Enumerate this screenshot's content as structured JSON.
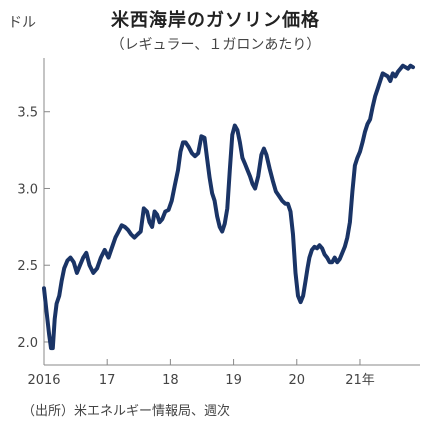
{
  "chart_data": {
    "type": "line",
    "title": "米西海岸のガソリン価格",
    "subtitle": "（レギュラー、１ガロンあたり）",
    "ylabel": "ドル",
    "xlabel": "",
    "ylim": [
      1.85,
      3.85
    ],
    "xlim": [
      2016.0,
      2021.95
    ],
    "yticks": [
      2.0,
      2.5,
      3.0,
      3.5
    ],
    "ytick_labels": [
      "2.0",
      "2.5",
      "3.0",
      "3.5"
    ],
    "xticks": [
      2016,
      2017,
      2018,
      2019,
      2020,
      2021
    ],
    "xtick_labels": [
      "2016",
      "17",
      "18",
      "19",
      "20",
      "21年"
    ],
    "grid": false,
    "line_color": "#1a3466",
    "source": "（出所）米エネルギー情報局、週次",
    "series": [
      {
        "x": [
          2016.0,
          2016.04,
          2016.08,
          2016.11,
          2016.14,
          2016.17,
          2016.2,
          2016.24,
          2016.28,
          2016.32,
          2016.37,
          2016.42,
          2016.47,
          2016.52,
          2016.57,
          2016.62,
          2016.67,
          2016.72,
          2016.78,
          2016.84,
          2016.9,
          2016.96,
          2017.02,
          2017.08,
          2017.13,
          2017.18,
          2017.23,
          2017.28,
          2017.33,
          2017.38,
          2017.43,
          2017.48,
          2017.53,
          2017.58,
          2017.63,
          2017.67,
          2017.71,
          2017.75,
          2017.79,
          2017.83,
          2017.87,
          2017.92,
          2017.97,
          2018.02,
          2018.07,
          2018.12,
          2018.16,
          2018.2,
          2018.24,
          2018.29,
          2018.34,
          2018.39,
          2018.44,
          2018.49,
          2018.54,
          2018.58,
          2018.62,
          2018.66,
          2018.7,
          2018.74,
          2018.78,
          2018.82,
          2018.86,
          2018.9,
          2018.94,
          2018.98,
          2019.02,
          2019.06,
          2019.1,
          2019.14,
          2019.18,
          2019.22,
          2019.26,
          2019.3,
          2019.34,
          2019.39,
          2019.44,
          2019.48,
          2019.52,
          2019.57,
          2019.62,
          2019.67,
          2019.72,
          2019.77,
          2019.82,
          2019.86,
          2019.9,
          2019.94,
          2019.98,
          2020.02,
          2020.06,
          2020.1,
          2020.14,
          2020.17,
          2020.2,
          2020.24,
          2020.28,
          2020.32,
          2020.36,
          2020.4,
          2020.44,
          2020.48,
          2020.52,
          2020.56,
          2020.6,
          2020.64,
          2020.68,
          2020.72,
          2020.76,
          2020.8,
          2020.84,
          2020.88,
          2020.92,
          2020.96,
          2021.0,
          2021.04,
          2021.08,
          2021.12,
          2021.16,
          2021.2,
          2021.24,
          2021.28,
          2021.32,
          2021.36,
          2021.4,
          2021.44,
          2021.48,
          2021.52,
          2021.56,
          2021.6,
          2021.64,
          2021.68,
          2021.72,
          2021.76,
          2021.8,
          2021.84
        ],
        "y": [
          2.35,
          2.2,
          2.05,
          1.96,
          1.96,
          2.15,
          2.25,
          2.3,
          2.4,
          2.48,
          2.53,
          2.55,
          2.52,
          2.45,
          2.5,
          2.55,
          2.58,
          2.5,
          2.45,
          2.48,
          2.55,
          2.6,
          2.55,
          2.62,
          2.68,
          2.72,
          2.76,
          2.75,
          2.73,
          2.7,
          2.68,
          2.7,
          2.72,
          2.87,
          2.85,
          2.78,
          2.75,
          2.85,
          2.83,
          2.78,
          2.8,
          2.85,
          2.86,
          2.92,
          3.02,
          3.12,
          3.24,
          3.3,
          3.3,
          3.27,
          3.23,
          3.21,
          3.23,
          3.34,
          3.33,
          3.2,
          3.07,
          2.97,
          2.92,
          2.82,
          2.75,
          2.72,
          2.77,
          2.87,
          3.12,
          3.35,
          3.41,
          3.38,
          3.3,
          3.2,
          3.16,
          3.12,
          3.08,
          3.03,
          3.0,
          3.08,
          3.22,
          3.26,
          3.22,
          3.13,
          3.05,
          2.98,
          2.95,
          2.92,
          2.9,
          2.9,
          2.85,
          2.7,
          2.45,
          2.3,
          2.26,
          2.3,
          2.4,
          2.48,
          2.55,
          2.6,
          2.62,
          2.61,
          2.63,
          2.61,
          2.57,
          2.55,
          2.52,
          2.52,
          2.55,
          2.52,
          2.54,
          2.58,
          2.62,
          2.68,
          2.78,
          2.98,
          3.15,
          3.2,
          3.24,
          3.3,
          3.37,
          3.42,
          3.45,
          3.53,
          3.6,
          3.65,
          3.7,
          3.75,
          3.74,
          3.73,
          3.7,
          3.75,
          3.73,
          3.76,
          3.78,
          3.8,
          3.79,
          3.78,
          3.8,
          3.79
        ]
      }
    ]
  }
}
